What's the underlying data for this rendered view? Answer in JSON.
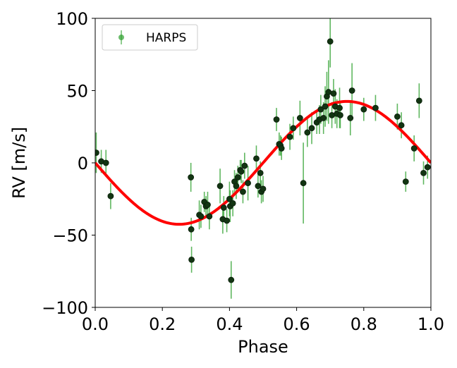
{
  "chart_data": {
    "type": "scatter",
    "title": "",
    "xlabel": "Phase",
    "ylabel": "RV [m/s]",
    "xlim": [
      0.0,
      1.0
    ],
    "ylim": [
      -100,
      100
    ],
    "xticks": [
      0.0,
      0.2,
      0.4,
      0.6,
      0.8,
      1.0
    ],
    "xtick_labels": [
      "0.0",
      "0.2",
      "0.4",
      "0.6",
      "0.8",
      "1.0"
    ],
    "yticks": [
      -100,
      -50,
      0,
      50,
      100
    ],
    "ytick_labels": [
      "−100",
      "−50",
      "0",
      "50",
      "100"
    ],
    "grid": false,
    "legend": {
      "position": "top-left",
      "entries": [
        "HARPS"
      ]
    },
    "colors": {
      "marker_fill": "#123412",
      "errorbar": "#2ca02c",
      "model": "#ff0000"
    },
    "model": {
      "name": "",
      "amplitude": 42.5,
      "offset": 0,
      "phase_of_min": 0.25,
      "x": [
        0.0,
        0.1,
        0.2,
        0.25,
        0.3,
        0.4,
        0.5,
        0.6,
        0.7,
        0.75,
        0.8,
        0.9,
        1.0
      ],
      "y": [
        0,
        -25,
        -40.4,
        -42.5,
        -40.4,
        -25,
        0,
        25,
        40.4,
        42.5,
        40.4,
        25,
        0
      ]
    },
    "series": [
      {
        "name": "HARPS",
        "x": [
          0.003,
          0.018,
          0.032,
          0.046,
          0.285,
          0.286,
          0.287,
          0.31,
          0.315,
          0.325,
          0.33,
          0.335,
          0.34,
          0.372,
          0.38,
          0.383,
          0.392,
          0.4,
          0.402,
          0.405,
          0.41,
          0.415,
          0.42,
          0.425,
          0.432,
          0.435,
          0.44,
          0.445,
          0.455,
          0.48,
          0.485,
          0.492,
          0.495,
          0.5,
          0.54,
          0.548,
          0.552,
          0.555,
          0.58,
          0.59,
          0.61,
          0.62,
          0.632,
          0.645,
          0.66,
          0.668,
          0.672,
          0.68,
          0.685,
          0.69,
          0.695,
          0.7,
          0.705,
          0.71,
          0.715,
          0.72,
          0.728,
          0.73,
          0.76,
          0.765,
          0.8,
          0.835,
          0.9,
          0.912,
          0.925,
          0.95,
          0.965,
          0.978,
          0.99
        ],
        "y": [
          7,
          1,
          0,
          -23,
          -10,
          -46,
          -67,
          -36,
          -37,
          -27,
          -30,
          -29,
          -37,
          -16,
          -39,
          -31,
          -40,
          -25,
          -30,
          -81,
          -28,
          -13,
          -16,
          -10,
          -5,
          -6,
          -20,
          -2,
          -14,
          3,
          -16,
          -7,
          -20,
          -18,
          30,
          13,
          12,
          10,
          18,
          24,
          31,
          -14,
          21,
          24,
          28,
          30,
          37,
          31,
          39,
          46,
          49,
          84,
          33,
          48,
          39,
          34,
          38,
          33,
          31,
          50,
          37,
          38,
          32,
          26,
          -13,
          10,
          43,
          -7,
          -3
        ],
        "yerr": [
          14,
          8,
          9,
          9,
          10,
          8,
          9,
          10,
          8,
          7,
          7,
          9,
          9,
          12,
          10,
          8,
          8,
          12,
          11,
          13,
          9,
          8,
          9,
          8,
          7,
          8,
          8,
          9,
          12,
          9,
          8,
          8,
          8,
          9,
          8,
          8,
          7,
          8,
          9,
          8,
          12,
          28,
          10,
          11,
          8,
          10,
          10,
          11,
          14,
          17,
          22,
          18,
          9,
          10,
          12,
          10,
          14,
          9,
          12,
          19,
          8,
          9,
          9,
          9,
          7,
          9,
          12,
          8,
          8
        ]
      }
    ]
  }
}
